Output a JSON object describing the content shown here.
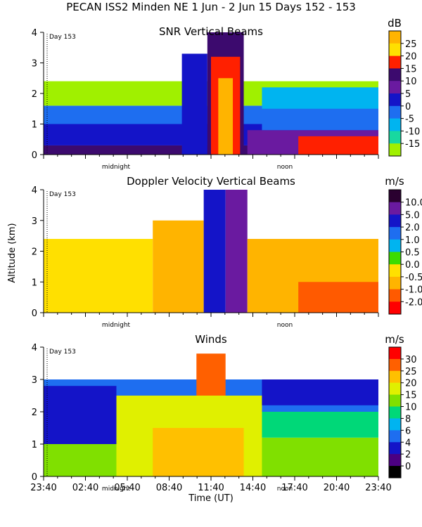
{
  "header": "PECAN ISS2 Minden NE    1 Jun -  2 Jun 15 Days 152 - 153",
  "chart_data": [
    {
      "type": "heatmap",
      "title": "SNR Vertical Beams",
      "unit": "dB",
      "ylabel": "",
      "ylim": [
        0,
        4
      ],
      "y_ticks": [
        "0",
        "1",
        "2",
        "3",
        "4"
      ],
      "day_marker": "Day 153",
      "x_markers": [
        "midnight",
        "noon"
      ],
      "colorbar": {
        "labels": [
          "25",
          "20",
          "15",
          "10",
          "5",
          "0",
          "-5",
          "-10",
          "-15"
        ],
        "colors": [
          "#FFB400",
          "#FFE000",
          "#FF2000",
          "#3C0A6E",
          "#6A1AA0",
          "#1414C8",
          "#1E6EF0",
          "#00B4F0",
          "#18D8A0",
          "#A0F000"
        ]
      },
      "layers": [
        {
          "x": [
            0,
            92
          ],
          "y": [
            0,
            0.3
          ],
          "color": "#3C0A6E"
        },
        {
          "x": [
            0,
            92
          ],
          "y": [
            0.3,
            1.0
          ],
          "color": "#1414C8"
        },
        {
          "x": [
            0,
            92
          ],
          "y": [
            1.0,
            1.6
          ],
          "color": "#1E6EF0"
        },
        {
          "x": [
            0,
            92
          ],
          "y": [
            1.6,
            2.4
          ],
          "color": "#A0F000"
        },
        {
          "x": [
            38,
            45
          ],
          "y": [
            0,
            3.3
          ],
          "color": "#1414C8"
        },
        {
          "x": [
            45,
            55
          ],
          "y": [
            0,
            4.0
          ],
          "color": "#3C0A6E"
        },
        {
          "x": [
            46,
            54
          ],
          "y": [
            0,
            3.2
          ],
          "color": "#FF2000"
        },
        {
          "x": [
            48,
            52
          ],
          "y": [
            0,
            2.5
          ],
          "color": "#FFB400"
        },
        {
          "x": [
            56,
            92
          ],
          "y": [
            0,
            0.8
          ],
          "color": "#6A1AA0"
        },
        {
          "x": [
            70,
            92
          ],
          "y": [
            0,
            0.6
          ],
          "color": "#FF2000"
        },
        {
          "x": [
            60,
            92
          ],
          "y": [
            0.8,
            1.5
          ],
          "color": "#1E6EF0"
        },
        {
          "x": [
            60,
            92
          ],
          "y": [
            1.5,
            2.2
          ],
          "color": "#00B4F0"
        }
      ]
    },
    {
      "type": "heatmap",
      "title": "Doppler Velocity Vertical Beams",
      "unit": "m/s",
      "ylabel": "Altitude (km)",
      "ylim": [
        0,
        4
      ],
      "y_ticks": [
        "0",
        "1",
        "2",
        "3",
        "4"
      ],
      "day_marker": "Day 153",
      "x_markers": [
        "midnight",
        "noon"
      ],
      "colorbar": {
        "labels": [
          "10.0",
          "5.0",
          "2.0",
          "1.0",
          "0.5",
          "0.0",
          "-0.5",
          "-1.0",
          "-2.0"
        ],
        "colors": [
          "#2A0030",
          "#6A1AA0",
          "#1414C8",
          "#1E6EF0",
          "#00B4F0",
          "#3CDC00",
          "#FFE000",
          "#FFB400",
          "#FF5A00",
          "#FF0000"
        ]
      },
      "layers": [
        {
          "x": [
            0,
            30
          ],
          "y": [
            0,
            2.4
          ],
          "color": "#FFE000"
        },
        {
          "x": [
            30,
            44
          ],
          "y": [
            0,
            3.0
          ],
          "color": "#FFB400"
        },
        {
          "x": [
            44,
            50
          ],
          "y": [
            0,
            4.0
          ],
          "color": "#1414C8"
        },
        {
          "x": [
            50,
            56
          ],
          "y": [
            0,
            4.0
          ],
          "color": "#6A1AA0"
        },
        {
          "x": [
            56,
            92
          ],
          "y": [
            0,
            2.4
          ],
          "color": "#FFB400"
        },
        {
          "x": [
            70,
            92
          ],
          "y": [
            0,
            1.0
          ],
          "color": "#FF5A00"
        }
      ]
    },
    {
      "type": "heatmap",
      "title": "Winds",
      "unit": "m/s",
      "ylabel": "",
      "ylim": [
        0,
        4
      ],
      "y_ticks": [
        "0",
        "1",
        "2",
        "3",
        "4"
      ],
      "day_marker": "Day 153",
      "x_markers": [
        "midnight",
        "noon"
      ],
      "xlabel": "Time (UT)",
      "x_ticks": [
        "23:40",
        "02:40",
        "05:40",
        "08:40",
        "11:40",
        "14:40",
        "17:40",
        "20:40",
        "23:40"
      ],
      "colorbar": {
        "labels": [
          "30",
          "25",
          "20",
          "15",
          "10",
          "8",
          "6",
          "4",
          "2",
          "0"
        ],
        "colors": [
          "#FF0000",
          "#FF6000",
          "#FFC000",
          "#E0F000",
          "#80E000",
          "#00D878",
          "#00B4F0",
          "#1E6EF0",
          "#1414C8",
          "#4B0082",
          "#000000"
        ]
      },
      "layers": [
        {
          "x": [
            0,
            92
          ],
          "y": [
            0,
            1.2
          ],
          "color": "#80E000"
        },
        {
          "x": [
            0,
            92
          ],
          "y": [
            1.2,
            2.0
          ],
          "color": "#00D878"
        },
        {
          "x": [
            0,
            92
          ],
          "y": [
            2.0,
            3.0
          ],
          "color": "#1E6EF0"
        },
        {
          "x": [
            20,
            60
          ],
          "y": [
            0,
            2.5
          ],
          "color": "#E0F000"
        },
        {
          "x": [
            30,
            55
          ],
          "y": [
            0,
            1.5
          ],
          "color": "#FFC000"
        },
        {
          "x": [
            42,
            50
          ],
          "y": [
            2.5,
            3.8
          ],
          "color": "#FF6000"
        },
        {
          "x": [
            0,
            20
          ],
          "y": [
            1.0,
            2.8
          ],
          "color": "#1414C8"
        },
        {
          "x": [
            60,
            92
          ],
          "y": [
            2.2,
            3.0
          ],
          "color": "#1414C8"
        }
      ]
    }
  ]
}
